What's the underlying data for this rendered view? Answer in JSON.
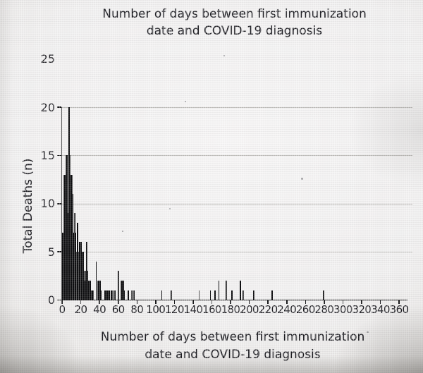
{
  "colors": {
    "bar": "#0d0d0f",
    "axis": "#141416",
    "grid": "rgba(138,136,132,0.55)",
    "text": "#1a1a1f",
    "background": "#f0efef"
  },
  "chart_data": {
    "type": "bar",
    "title": "Number of days between first immunization date and COVID-19 diagnosis",
    "title_lines": [
      "Number of days between first immunization",
      "date and COVID-19 diagnosis"
    ],
    "xlabel": "Number of days between first immunization date and COVID-19 diagnosis",
    "xlabel_lines": [
      "Number of days between first immunization",
      "date and COVID-19 diagnosis"
    ],
    "ylabel": "Total Deaths (n)",
    "xlim": [
      0,
      368
    ],
    "ylim": [
      0,
      25
    ],
    "x_ticks": [
      0,
      20,
      40,
      60,
      80,
      100,
      120,
      140,
      160,
      180,
      200,
      220,
      240,
      260,
      280,
      300,
      320,
      340,
      360
    ],
    "y_ticks": [
      0,
      5,
      10,
      15,
      20,
      25
    ],
    "y_gridlines": [
      5,
      10,
      15,
      20
    ],
    "legend": null,
    "grid": "horizontal-only",
    "bin_width_days": 1,
    "bars": [
      [
        0,
        7
      ],
      [
        1,
        7
      ],
      [
        2,
        13
      ],
      [
        3,
        13
      ],
      [
        4,
        15
      ],
      [
        5,
        15
      ],
      [
        6,
        9
      ],
      [
        7,
        20
      ],
      [
        8,
        15
      ],
      [
        9,
        13
      ],
      [
        10,
        13
      ],
      [
        11,
        11
      ],
      [
        12,
        7
      ],
      [
        13,
        9
      ],
      [
        14,
        7
      ],
      [
        15,
        5
      ],
      [
        16,
        8
      ],
      [
        17,
        5
      ],
      [
        18,
        6
      ],
      [
        19,
        6
      ],
      [
        20,
        6
      ],
      [
        21,
        5
      ],
      [
        22,
        5
      ],
      [
        23,
        3
      ],
      [
        24,
        2
      ],
      [
        25,
        3
      ],
      [
        26,
        6
      ],
      [
        27,
        3
      ],
      [
        28,
        2
      ],
      [
        29,
        2
      ],
      [
        30,
        2
      ],
      [
        31,
        1
      ],
      [
        32,
        1
      ],
      [
        33,
        1
      ],
      [
        36,
        4
      ],
      [
        38,
        2
      ],
      [
        39,
        2
      ],
      [
        40,
        2
      ],
      [
        41,
        1
      ],
      [
        45,
        1
      ],
      [
        46,
        1
      ],
      [
        47,
        1
      ],
      [
        48,
        1
      ],
      [
        49,
        1
      ],
      [
        50,
        1
      ],
      [
        52,
        1
      ],
      [
        53,
        1
      ],
      [
        55,
        1
      ],
      [
        56,
        1
      ],
      [
        60,
        3
      ],
      [
        63,
        2
      ],
      [
        64,
        2
      ],
      [
        65,
        2
      ],
      [
        66,
        1
      ],
      [
        70,
        1
      ],
      [
        74,
        1
      ],
      [
        76,
        1
      ],
      [
        106,
        1
      ],
      [
        116,
        1
      ],
      [
        146,
        1
      ],
      [
        158,
        1
      ],
      [
        163,
        1
      ],
      [
        167,
        2
      ],
      [
        175,
        2
      ],
      [
        181,
        1
      ],
      [
        190,
        2
      ],
      [
        193,
        1
      ],
      [
        204,
        1
      ],
      [
        224,
        1
      ],
      [
        279,
        1
      ]
    ]
  }
}
